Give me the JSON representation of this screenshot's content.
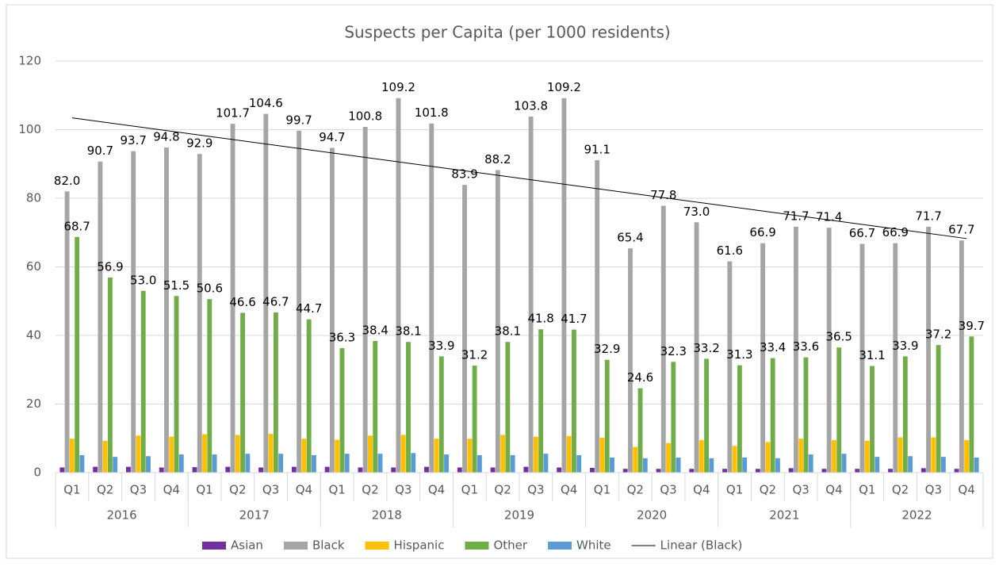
{
  "chart_data": {
    "type": "bar",
    "title": "Suspects per Capita (per 1000 residents)",
    "categories": [
      "Q1",
      "Q2",
      "Q3",
      "Q4",
      "Q1",
      "Q2",
      "Q3",
      "Q4",
      "Q1",
      "Q2",
      "Q3",
      "Q4",
      "Q1",
      "Q2",
      "Q3",
      "Q4",
      "Q1",
      "Q2",
      "Q3",
      "Q4",
      "Q1",
      "Q2",
      "Q3",
      "Q4",
      "Q1",
      "Q2",
      "Q3",
      "Q4"
    ],
    "groups": [
      "2016",
      "2017",
      "2018",
      "2019",
      "2020",
      "2021",
      "2022"
    ],
    "series": [
      {
        "name": "Asian",
        "color": "#7030a0",
        "values": [
          1.5,
          1.7,
          1.7,
          1.5,
          1.6,
          1.7,
          1.5,
          1.7,
          1.7,
          1.5,
          1.5,
          1.7,
          1.5,
          1.5,
          1.7,
          1.5,
          1.4,
          1.1,
          1.1,
          1.1,
          1.1,
          1.1,
          1.3,
          1.1,
          1.1,
          1.1,
          1.3,
          1.1
        ]
      },
      {
        "name": "Black",
        "color": "#a5a5a5",
        "values": [
          82.0,
          90.7,
          93.7,
          94.8,
          92.9,
          101.7,
          104.6,
          99.7,
          94.7,
          100.8,
          109.2,
          101.8,
          83.9,
          88.2,
          103.8,
          109.2,
          91.1,
          65.4,
          77.8,
          73.0,
          61.6,
          66.9,
          71.7,
          71.4,
          66.7,
          66.9,
          71.7,
          67.7
        ],
        "value_labels": [
          "82.0",
          "90.7",
          "93.7",
          "94.8",
          "92.9",
          "101.7",
          "104.6",
          "99.7",
          "94.7",
          "100.8",
          "109.2",
          "101.8",
          "83.9",
          "88.2",
          "103.8",
          "109.2",
          "91.1",
          "65.4",
          "77.8",
          "73.0",
          "61.6",
          "66.9",
          "71.7",
          "71.4",
          "66.7",
          "66.9",
          "71.7",
          "67.7"
        ]
      },
      {
        "name": "Hispanic",
        "color": "#ffc000",
        "values": [
          9.9,
          9.3,
          10.8,
          10.5,
          11.2,
          11.0,
          11.3,
          9.9,
          9.6,
          10.8,
          11.0,
          9.9,
          9.9,
          11.0,
          10.5,
          10.7,
          10.2,
          7.5,
          8.6,
          9.5,
          7.8,
          8.9,
          9.9,
          9.5,
          9.3,
          10.3,
          10.3,
          9.5
        ]
      },
      {
        "name": "Other",
        "color": "#70ad47",
        "values": [
          68.7,
          56.9,
          53.0,
          51.5,
          50.6,
          46.6,
          46.7,
          44.7,
          36.3,
          38.4,
          38.1,
          33.9,
          31.2,
          38.1,
          41.8,
          41.7,
          32.9,
          24.6,
          32.3,
          33.2,
          31.3,
          33.4,
          33.6,
          36.5,
          31.1,
          33.9,
          37.2,
          39.7
        ],
        "value_labels": [
          "68.7",
          "56.9",
          "53.0",
          "51.5",
          "50.6",
          "46.6",
          "46.7",
          "44.7",
          "36.3",
          "38.4",
          "38.1",
          "33.9",
          "31.2",
          "38.1",
          "41.8",
          "41.7",
          "32.9",
          "24.6",
          "32.3",
          "33.2",
          "31.3",
          "33.4",
          "33.6",
          "36.5",
          "31.1",
          "33.9",
          "37.2",
          "39.7"
        ]
      },
      {
        "name": "White",
        "color": "#5b9bd5",
        "values": [
          5.1,
          4.6,
          4.8,
          5.3,
          5.3,
          5.5,
          5.5,
          5.1,
          5.5,
          5.5,
          5.7,
          5.3,
          5.1,
          5.1,
          5.5,
          5.1,
          4.4,
          4.2,
          4.4,
          4.2,
          4.4,
          4.2,
          5.3,
          5.5,
          4.6,
          4.8,
          4.6,
          4.4
        ]
      }
    ],
    "trendline": {
      "name": "Linear (Black)",
      "series": 1,
      "color": "#000000"
    },
    "ylim": [
      0,
      120
    ],
    "yticks": [
      0,
      20,
      40,
      60,
      80,
      100,
      120
    ],
    "grid": true,
    "legend": "bottom"
  }
}
